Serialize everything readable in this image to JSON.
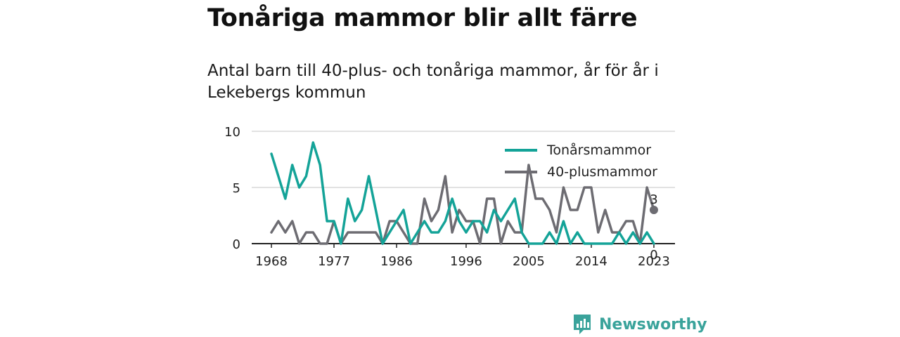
{
  "title": "Tonåriga mammor blir allt färre",
  "subtitle": "Antal barn till 40-plus- och tonåriga mammor, år för år i Lekebergs kommun",
  "brand": {
    "name": "Newsworthy"
  },
  "colors": {
    "teen": "#14a398",
    "forty": "#6d6c72",
    "grid": "#d9d9d9",
    "axis": "#222222",
    "brand": "#3aa39b"
  },
  "chart_data": {
    "type": "line",
    "x": [
      1968,
      1969,
      1970,
      1971,
      1972,
      1973,
      1974,
      1975,
      1976,
      1977,
      1978,
      1979,
      1980,
      1981,
      1982,
      1983,
      1984,
      1985,
      1986,
      1987,
      1988,
      1989,
      1990,
      1991,
      1992,
      1993,
      1994,
      1995,
      1996,
      1997,
      1998,
      1999,
      2000,
      2001,
      2002,
      2003,
      2004,
      2005,
      2006,
      2007,
      2008,
      2009,
      2010,
      2011,
      2012,
      2013,
      2014,
      2015,
      2016,
      2017,
      2018,
      2019,
      2020,
      2021,
      2022,
      2023
    ],
    "xticks": [
      1968,
      1977,
      1986,
      1996,
      2005,
      2014,
      2023
    ],
    "yticks": [
      0,
      5,
      10
    ],
    "ylim": [
      0,
      10
    ],
    "series": [
      {
        "name": "Tonårsmammor",
        "color": "#14a398",
        "values": [
          8,
          6,
          4,
          7,
          5,
          6,
          9,
          7,
          2,
          2,
          0,
          4,
          2,
          3,
          6,
          3,
          0,
          1,
          2,
          3,
          0,
          1,
          2,
          1,
          1,
          2,
          4,
          2,
          1,
          2,
          2,
          1,
          3,
          2,
          3,
          4,
          1,
          0,
          0,
          0,
          1,
          0,
          2,
          0,
          1,
          0,
          0,
          0,
          0,
          0,
          1,
          0,
          1,
          0,
          1,
          0
        ]
      },
      {
        "name": "40-plusmammor",
        "color": "#6d6c72",
        "values": [
          1,
          2,
          1,
          2,
          0,
          1,
          1,
          0,
          0,
          2,
          0,
          1,
          1,
          1,
          1,
          1,
          0,
          2,
          2,
          1,
          0,
          0,
          4,
          2,
          3,
          6,
          1,
          3,
          2,
          2,
          0,
          4,
          4,
          0,
          2,
          1,
          1,
          7,
          4,
          4,
          3,
          1,
          5,
          3,
          3,
          5,
          5,
          1,
          3,
          1,
          1,
          2,
          2,
          0,
          5,
          3
        ]
      }
    ],
    "end_labels": [
      "3",
      "0"
    ],
    "legend_position": "top-right",
    "grid": true
  }
}
